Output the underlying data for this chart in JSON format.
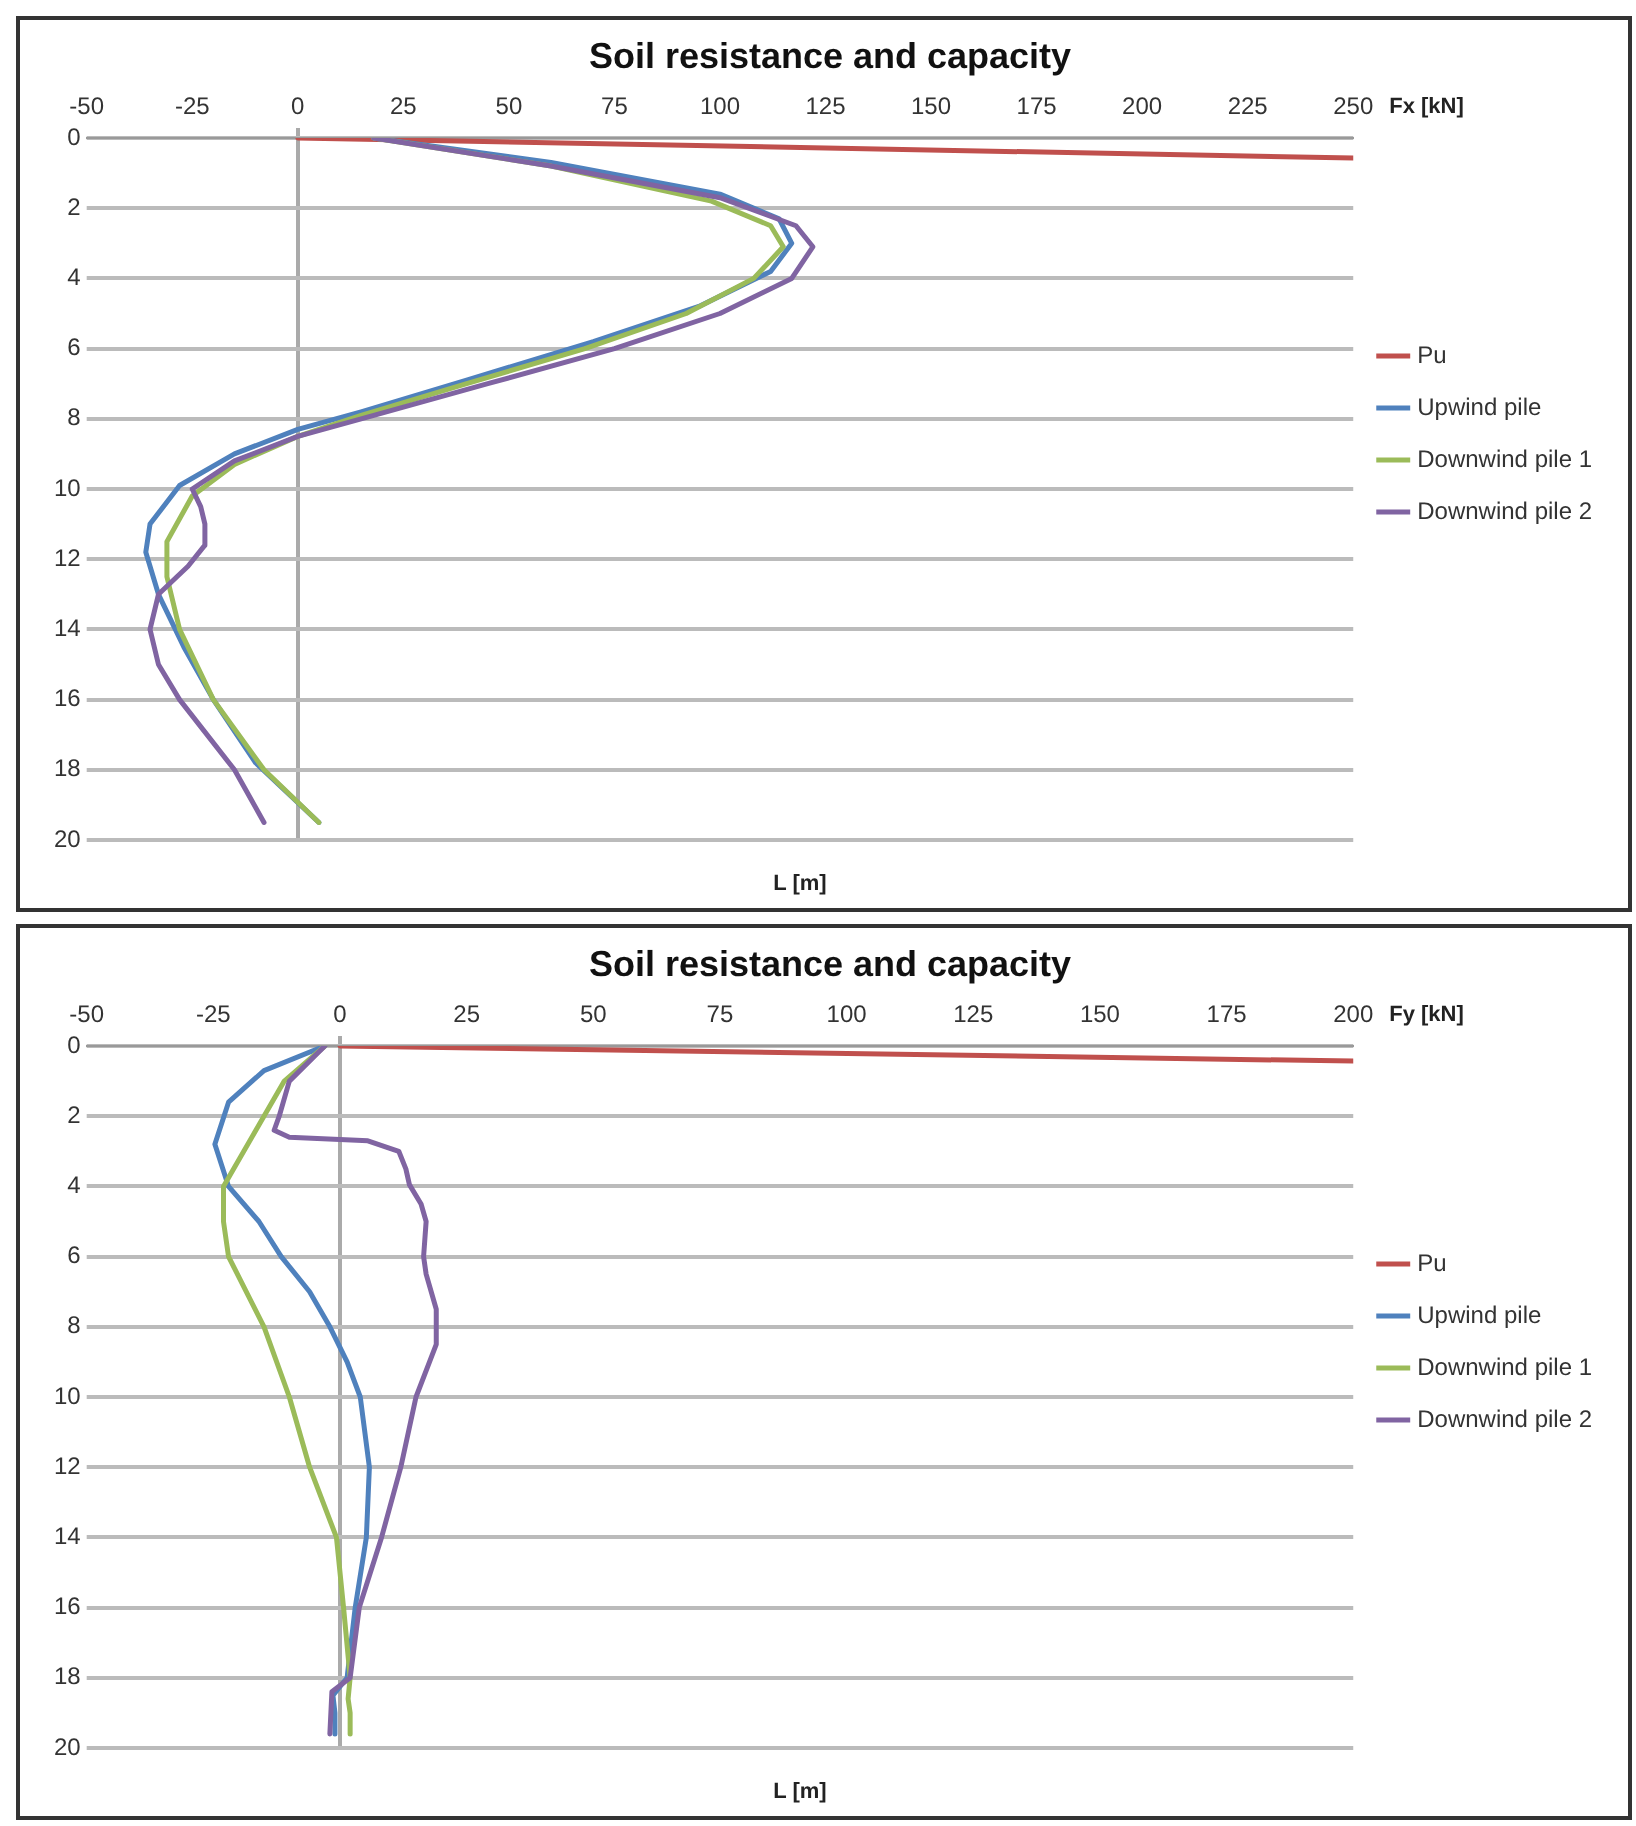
{
  "chart_data": [
    {
      "type": "line",
      "title": "Soil resistance and capacity",
      "xlabel": "Fx [kN]",
      "annotations": [
        "L [m]"
      ],
      "xlim": [
        -50,
        250
      ],
      "xticks": [
        -50,
        -25,
        0,
        25,
        50,
        75,
        100,
        125,
        150,
        175,
        200,
        225,
        250
      ],
      "ylim": [
        20,
        0
      ],
      "yticks": [
        0,
        2,
        4,
        6,
        8,
        10,
        12,
        14,
        16,
        18,
        20
      ],
      "grid": "y",
      "legend": "right",
      "series": [
        {
          "name": "Pu",
          "color": "#c0504d",
          "x": [
            0,
            250
          ],
          "values": [
            0,
            0.57
          ]
        },
        {
          "name": "Upwind pile",
          "color": "#4f81bd",
          "x": [
            18,
            60,
            100,
            114,
            117,
            112,
            95,
            70,
            40,
            15,
            0,
            -15,
            -28,
            -35,
            -36,
            -33,
            -27,
            -20,
            -10,
            5
          ],
          "values": [
            0,
            0.7,
            1.6,
            2.3,
            3,
            3.8,
            4.8,
            5.8,
            6.9,
            7.8,
            8.3,
            9,
            9.9,
            11,
            11.8,
            13,
            14.5,
            16,
            17.8,
            19.5
          ]
        },
        {
          "name": "Downwind pile 1",
          "color": "#9bbb59",
          "x": [
            18,
            60,
            98,
            112,
            115,
            108,
            92,
            68,
            40,
            15,
            0,
            -15,
            -25,
            -31,
            -31,
            -28,
            -20,
            -8,
            5
          ],
          "values": [
            0,
            0.8,
            1.8,
            2.5,
            3.1,
            4,
            5,
            6,
            7,
            7.9,
            8.5,
            9.3,
            10.2,
            11.5,
            12.5,
            14,
            16,
            18,
            19.5
          ]
        },
        {
          "name": "Downwind pile 2",
          "color": "#8064a2",
          "x": [
            18,
            60,
            100,
            118,
            122,
            117,
            100,
            75,
            45,
            18,
            0,
            -15,
            -25,
            -23,
            -22,
            -22,
            -26,
            -33,
            -35,
            -33,
            -28,
            -15,
            -8
          ],
          "values": [
            0,
            0.8,
            1.7,
            2.5,
            3.1,
            4,
            5,
            6,
            7,
            7.9,
            8.5,
            9.2,
            10,
            10.5,
            11,
            11.6,
            12.2,
            13,
            14,
            15,
            16,
            18,
            19.5
          ]
        }
      ]
    },
    {
      "type": "line",
      "title": "Soil resistance and capacity",
      "xlabel": "Fy [kN]",
      "annotations": [
        "L [m]"
      ],
      "xlim": [
        -50,
        200
      ],
      "xticks": [
        -50,
        -25,
        0,
        25,
        50,
        75,
        100,
        125,
        150,
        175,
        200
      ],
      "ylim": [
        20,
        0
      ],
      "yticks": [
        0,
        2,
        4,
        6,
        8,
        10,
        12,
        14,
        16,
        18,
        20
      ],
      "grid": "y",
      "legend": "right",
      "series": [
        {
          "name": "Pu",
          "color": "#c0504d",
          "x": [
            0,
            200
          ],
          "values": [
            0,
            0.43
          ]
        },
        {
          "name": "Upwind pile",
          "color": "#4f81bd",
          "x": [
            -3,
            -15,
            -22,
            -24.7,
            -22,
            -16,
            -11.6,
            -6,
            -2,
            1.4,
            4,
            5.8,
            5.2,
            3,
            1.4,
            -1.4,
            -1,
            -1
          ],
          "values": [
            0,
            0.7,
            1.6,
            2.8,
            4,
            5,
            6,
            7,
            8,
            9,
            10,
            12,
            14,
            16,
            18,
            18.5,
            19,
            19.6
          ]
        },
        {
          "name": "Downwind pile 1",
          "color": "#9bbb59",
          "x": [
            -3,
            -11,
            -17,
            -23,
            -23,
            -22,
            -15,
            -10,
            -6,
            -0.7,
            0.7,
            2,
            1.6,
            2,
            2
          ],
          "values": [
            0,
            1,
            2.5,
            4,
            5,
            6,
            8,
            10,
            12,
            14,
            16,
            18,
            18.6,
            19,
            19.6
          ]
        },
        {
          "name": "Downwind pile 2",
          "color": "#8064a2",
          "x": [
            -3,
            -10,
            -12,
            -13,
            -10,
            5.5,
            11.6,
            13,
            13.7,
            16,
            17,
            16.5,
            17,
            19,
            19,
            15,
            12,
            8.2,
            3.8,
            2,
            -1.6,
            -2
          ],
          "values": [
            0,
            1,
            2,
            2.4,
            2.6,
            2.7,
            3,
            3.5,
            3.95,
            4.5,
            5,
            6,
            6.5,
            7.5,
            8.5,
            10,
            12,
            14,
            16,
            18,
            18.4,
            19.6
          ]
        }
      ]
    }
  ]
}
